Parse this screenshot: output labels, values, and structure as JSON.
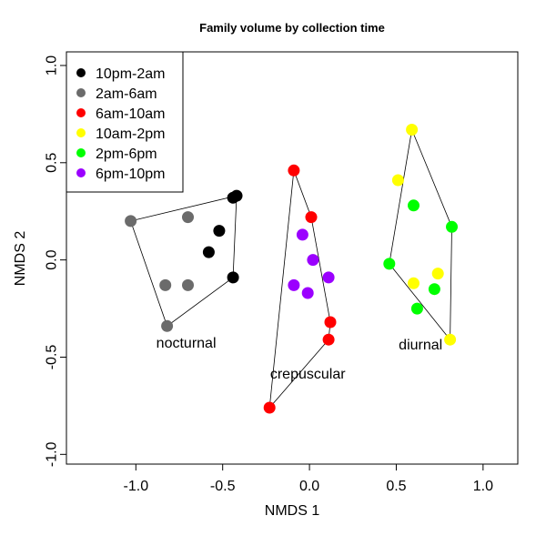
{
  "chart_data": {
    "type": "scatter",
    "title": "Family volume by collection time",
    "xlabel": "NMDS 1",
    "ylabel": "NMDS 2",
    "xlim": [
      -1.4,
      1.2
    ],
    "ylim": [
      -1.05,
      1.07
    ],
    "xticks": [
      -1.0,
      -0.5,
      0.0,
      0.5,
      1.0
    ],
    "xtick_labels": [
      "-1.0",
      "-0.5",
      "0.0",
      "0.5",
      "1.0"
    ],
    "yticks": [
      -1.0,
      -0.5,
      0.0,
      0.5,
      1.0
    ],
    "ytick_labels": [
      "-1.0",
      "-0.5",
      "0.0",
      "0.5",
      "1.0"
    ],
    "grid": false,
    "legend_position": "top-left",
    "series": [
      {
        "name": "10pm-2am",
        "color": "#000000",
        "points": [
          [
            -0.42,
            0.33
          ],
          [
            -0.44,
            0.32
          ],
          [
            -0.52,
            0.15
          ],
          [
            -0.58,
            0.04
          ],
          [
            -0.44,
            -0.09
          ]
        ]
      },
      {
        "name": "2am-6am",
        "color": "#6b6b6b",
        "points": [
          [
            -1.03,
            0.2
          ],
          [
            -0.7,
            0.22
          ],
          [
            -0.83,
            -0.13
          ],
          [
            -0.7,
            -0.13
          ],
          [
            -0.82,
            -0.34
          ]
        ]
      },
      {
        "name": "6am-10am",
        "color": "#ff0000",
        "points": [
          [
            -0.09,
            0.46
          ],
          [
            0.01,
            0.22
          ],
          [
            0.12,
            -0.32
          ],
          [
            0.11,
            -0.41
          ],
          [
            -0.23,
            -0.76
          ]
        ]
      },
      {
        "name": "10am-2pm",
        "color": "#ffff00",
        "points": [
          [
            0.59,
            0.67
          ],
          [
            0.51,
            0.41
          ],
          [
            0.6,
            -0.12
          ],
          [
            0.74,
            -0.07
          ],
          [
            0.81,
            -0.41
          ]
        ]
      },
      {
        "name": "2pm-6pm",
        "color": "#00ff00",
        "points": [
          [
            0.6,
            0.28
          ],
          [
            0.82,
            0.17
          ],
          [
            0.46,
            -0.02
          ],
          [
            0.72,
            -0.15
          ],
          [
            0.62,
            -0.25
          ]
        ]
      },
      {
        "name": "6pm-10pm",
        "color": "#9b00ff",
        "points": [
          [
            -0.04,
            0.13
          ],
          [
            0.02,
            0.0
          ],
          [
            0.11,
            -0.09
          ],
          [
            -0.09,
            -0.13
          ],
          [
            -0.01,
            -0.17
          ]
        ]
      }
    ],
    "hulls": [
      {
        "label": "nocturnal",
        "vertices": [
          [
            -1.03,
            0.2
          ],
          [
            -0.42,
            0.33
          ],
          [
            -0.44,
            -0.09
          ],
          [
            -0.82,
            -0.34
          ]
        ]
      },
      {
        "label": "crepuscular",
        "vertices": [
          [
            -0.09,
            0.46
          ],
          [
            0.01,
            0.22
          ],
          [
            0.12,
            -0.32
          ],
          [
            0.11,
            -0.41
          ],
          [
            -0.23,
            -0.76
          ]
        ]
      },
      {
        "label": "diurnal",
        "vertices": [
          [
            0.59,
            0.67
          ],
          [
            0.82,
            0.17
          ],
          [
            0.81,
            -0.41
          ],
          [
            0.46,
            -0.02
          ]
        ]
      }
    ],
    "annotations": [
      {
        "text": "nocturnal",
        "x": -0.71,
        "y": -0.45
      },
      {
        "text": "crepuscular",
        "x": -0.01,
        "y": -0.61
      },
      {
        "text": "diurnal",
        "x": 0.64,
        "y": -0.46
      }
    ]
  }
}
